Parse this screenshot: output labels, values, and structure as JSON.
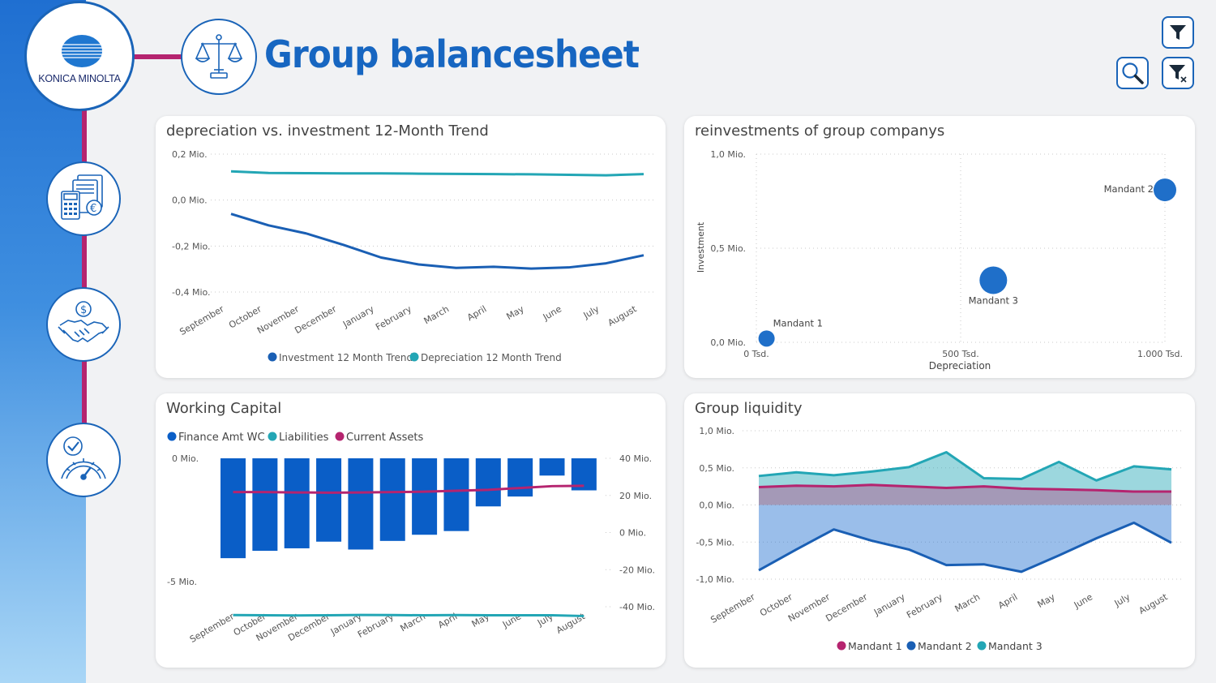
{
  "header": {
    "title": "Group balancesheet",
    "brand": "KONICA MINOLTA"
  },
  "toolbar": {
    "filter_icon": "funnel-icon",
    "search_icon": "magnifier-icon",
    "clear_filter_icon": "funnel-clear-icon"
  },
  "nav": [
    {
      "id": "finance",
      "icon": "calculator-euro-icon"
    },
    {
      "id": "deals",
      "icon": "handshake-dollar-icon"
    },
    {
      "id": "performance",
      "icon": "gauge-check-icon"
    }
  ],
  "colors": {
    "brand_blue": "#1766c1",
    "investment": "#1a5fb4",
    "depreciation": "#23a6b5",
    "current_assets": "#b5246f",
    "bar": "#0a5ec7",
    "accent_magenta": "#b5246f"
  },
  "chart_data": [
    {
      "id": "trend",
      "type": "line",
      "title": "depreciation vs. investment 12-Month Trend",
      "categories": [
        "September",
        "October",
        "November",
        "December",
        "January",
        "February",
        "March",
        "April",
        "May",
        "June",
        "July",
        "August"
      ],
      "series": [
        {
          "name": "Investment 12 Month Trend",
          "values": [
            -0.06,
            -0.11,
            -0.145,
            -0.195,
            -0.25,
            -0.28,
            -0.295,
            -0.29,
            -0.298,
            -0.293,
            -0.275,
            -0.24
          ]
        },
        {
          "name": "Depreciation 12 Month Trend",
          "values": [
            0.125,
            0.118,
            0.117,
            0.116,
            0.116,
            0.115,
            0.114,
            0.113,
            0.112,
            0.11,
            0.108,
            0.113
          ]
        }
      ],
      "yticks": [
        0.2,
        0.0,
        -0.2,
        -0.4
      ],
      "ytick_labels": [
        "0,2 Mio.",
        "0,0 Mio.",
        "-0,2 Mio.",
        "-0,4 Mio."
      ],
      "ylim": [
        -0.4,
        0.2
      ]
    },
    {
      "id": "reinvest",
      "type": "scatter",
      "title": "reinvestments of group companys",
      "xlabel": "Depreciation",
      "ylabel": "Investment",
      "xlim": [
        0,
        1000
      ],
      "ylim": [
        0,
        1.0
      ],
      "xtick_labels": [
        "0 Tsd.",
        "500 Tsd.",
        "1.000 Tsd."
      ],
      "ytick_labels": [
        "1,0 Mio.",
        "0,5 Mio.",
        "0,0 Mio."
      ],
      "points": [
        {
          "label": "Mandant 1",
          "x": 25,
          "y": 0.02
        },
        {
          "label": "Mandant 3",
          "x": 580,
          "y": 0.33
        },
        {
          "label": "Mandant 2",
          "x": 1000,
          "y": 0.81
        }
      ]
    },
    {
      "id": "wc",
      "type": "bar",
      "title": "Working Capital",
      "categories": [
        "September",
        "October",
        "November",
        "December",
        "January",
        "February",
        "March",
        "April",
        "May",
        "June",
        "July",
        "August"
      ],
      "legend": [
        "Finance Amt WC",
        "Liabilities",
        "Current Assets"
      ],
      "series": [
        {
          "name": "Finance Amt WC",
          "values": [
            -4.05,
            -3.75,
            -3.65,
            -3.38,
            -3.7,
            -3.35,
            -3.1,
            -2.95,
            -1.95,
            -1.55,
            -0.7,
            -1.3
          ]
        },
        {
          "name": "Liabilities",
          "values": [
            -44.5,
            -44.6,
            -44.7,
            -44.6,
            -44.4,
            -44.5,
            -44.6,
            -44.5,
            -44.6,
            -44.6,
            -44.6,
            -45.0
          ]
        },
        {
          "name": "Current Assets",
          "values": [
            21.8,
            21.8,
            21.6,
            21.5,
            21.6,
            21.8,
            22.0,
            22.5,
            23.0,
            24.0,
            25.0,
            25.2
          ]
        }
      ],
      "left_ylim": [
        -5,
        0
      ],
      "left_tick_labels": [
        "0 Mio.",
        "-5 Mio."
      ],
      "right_ylim": [
        -40,
        40
      ],
      "right_tick_labels": [
        "40 Mio.",
        "20 Mio.",
        "0 Mio.",
        "-20 Mio.",
        "-40 Mio."
      ]
    },
    {
      "id": "liquidity",
      "type": "area",
      "title": "Group liquidity",
      "categories": [
        "September",
        "October",
        "November",
        "December",
        "January",
        "February",
        "March",
        "April",
        "May",
        "June",
        "July",
        "August"
      ],
      "series": [
        {
          "name": "Mandant 1",
          "values": [
            0.24,
            0.26,
            0.25,
            0.27,
            0.25,
            0.23,
            0.25,
            0.22,
            0.21,
            0.2,
            0.18,
            0.18
          ]
        },
        {
          "name": "Mandant 2",
          "values": [
            -0.88,
            -0.6,
            -0.33,
            -0.48,
            -0.6,
            -0.81,
            -0.8,
            -0.9,
            -0.68,
            -0.45,
            -0.24,
            -0.51
          ]
        },
        {
          "name": "Mandant 3",
          "values": [
            0.39,
            0.44,
            0.4,
            0.45,
            0.51,
            0.71,
            0.36,
            0.35,
            0.58,
            0.33,
            0.52,
            0.48
          ]
        }
      ],
      "ylim": [
        -1.0,
        1.0
      ],
      "ytick_labels": [
        "1,0 Mio.",
        "0,5 Mio.",
        "0,0 Mio.",
        "-0,5 Mio.",
        "-1,0 Mio."
      ]
    }
  ]
}
